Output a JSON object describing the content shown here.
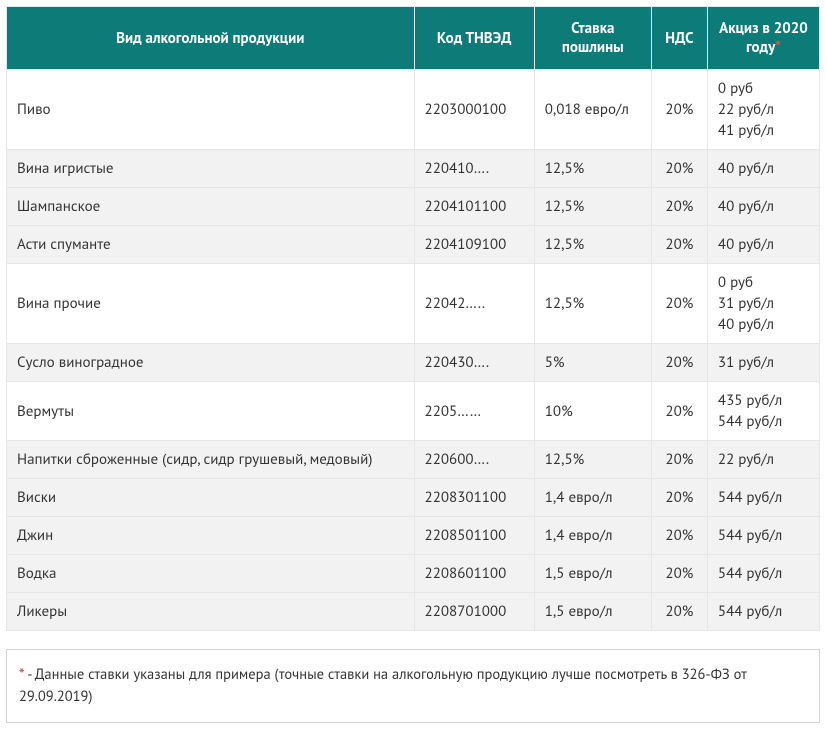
{
  "table": {
    "headers": {
      "product": "Вид алкогольной продукции",
      "code": "Код ТНВЭД",
      "duty": "Ставка пошлины",
      "vat": "НДС",
      "excise": "Акциз в 2020 году",
      "asterisk": "*"
    },
    "rows": [
      {
        "product": "Пиво",
        "code": "2203000100",
        "duty": "0,018 евро/л",
        "vat": "20%",
        "excise": "0 руб\n22 руб/л\n41 руб/л",
        "alt": false
      },
      {
        "product": "Вина игристые",
        "code": "220410….",
        "duty": "12,5%",
        "vat": "20%",
        "excise": "40 руб/л",
        "alt": true
      },
      {
        "product": "Шампанское",
        "code": "2204101100",
        "duty": "12,5%",
        "vat": "20%",
        "excise": "40 руб/л",
        "alt": true
      },
      {
        "product": "Асти спуманте",
        "code": "2204109100",
        "duty": "12,5%",
        "vat": "20%",
        "excise": "40 руб/л",
        "alt": true
      },
      {
        "product": "Вина прочие",
        "code": "22042…..",
        "duty": "12,5%",
        "vat": "20%",
        "excise": "0 руб\n31 руб/л\n40 руб/л",
        "alt": false
      },
      {
        "product": "Сусло виноградное",
        "code": "220430….",
        "duty": "5%",
        "vat": "20%",
        "excise": "31 руб/л",
        "alt": true
      },
      {
        "product": "Вермуты",
        "code": "2205……",
        "duty": "10%",
        "vat": "20%",
        "excise": "435 руб/л\n544 руб/л",
        "alt": false
      },
      {
        "product": "Напитки сброженные (сидр, сидр грушевый, медовый)",
        "code": "220600….",
        "duty": "12,5%",
        "vat": "20%",
        "excise": "22 руб/л",
        "alt": true
      },
      {
        "product": "Виски",
        "code": "2208301100",
        "duty": "1,4 евро/л",
        "vat": "20%",
        "excise": "544 руб/л",
        "alt": true
      },
      {
        "product": "Джин",
        "code": "2208501100",
        "duty": "1,4 евро/л",
        "vat": "20%",
        "excise": "544 руб/л",
        "alt": true
      },
      {
        "product": "Водка",
        "code": "2208601100",
        "duty": "1,5 евро/л",
        "vat": "20%",
        "excise": "544 руб/л",
        "alt": true
      },
      {
        "product": "Ликеры",
        "code": "2208701000",
        "duty": "1,5 евро/л",
        "vat": "20%",
        "excise": "544 руб/л",
        "alt": true
      }
    ],
    "colors": {
      "header_bg": "#0d7b78",
      "header_text": "#ffffff",
      "row_alt_bg": "#f2f2f2",
      "border": "#e6e6e6",
      "outer_border": "#cfd3d6",
      "text": "#333333",
      "asterisk": "#d9534f"
    }
  },
  "footnote": {
    "asterisk": "*",
    "text": " - Данные ставки указаны для примера (точные ставки на алкогольную продукцию лучше посмотреть в 326-ФЗ от 29.09.2019)"
  }
}
